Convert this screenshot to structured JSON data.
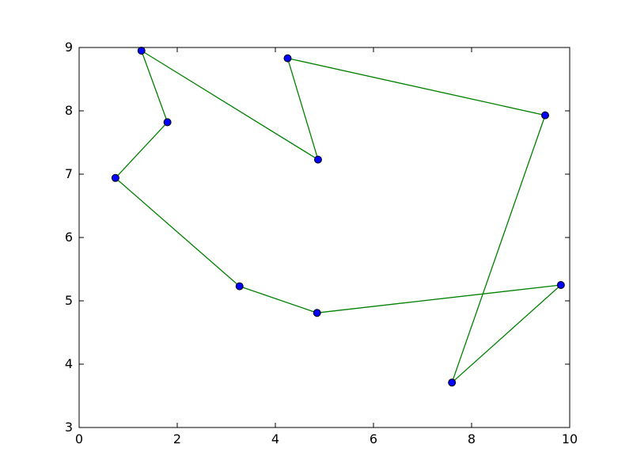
{
  "figure": {
    "background": "#ffffff"
  },
  "chart_data": {
    "type": "line",
    "title": "",
    "xlabel": "",
    "ylabel": "",
    "xlim": [
      0,
      10
    ],
    "ylim": [
      3,
      9
    ],
    "xticks": [
      0,
      2,
      4,
      6,
      8,
      10
    ],
    "yticks": [
      3,
      4,
      5,
      6,
      7,
      8,
      9
    ],
    "grid": false,
    "legend": null,
    "closed_loop": true,
    "line_color": "#008000",
    "line_width": 1.3,
    "marker": "circle",
    "marker_radius": 4.5,
    "marker_fill": "#0000ff",
    "marker_edge": "#000000",
    "axis_color": "#000000",
    "tick_direction": "in",
    "tick_length": 6,
    "points": [
      {
        "x": 1.27,
        "y": 8.95
      },
      {
        "x": 1.8,
        "y": 7.82
      },
      {
        "x": 0.74,
        "y": 6.94
      },
      {
        "x": 3.27,
        "y": 5.23
      },
      {
        "x": 4.85,
        "y": 4.81
      },
      {
        "x": 9.82,
        "y": 5.25
      },
      {
        "x": 7.6,
        "y": 3.71
      },
      {
        "x": 9.5,
        "y": 7.93
      },
      {
        "x": 4.25,
        "y": 8.83
      },
      {
        "x": 4.87,
        "y": 7.23
      }
    ]
  }
}
